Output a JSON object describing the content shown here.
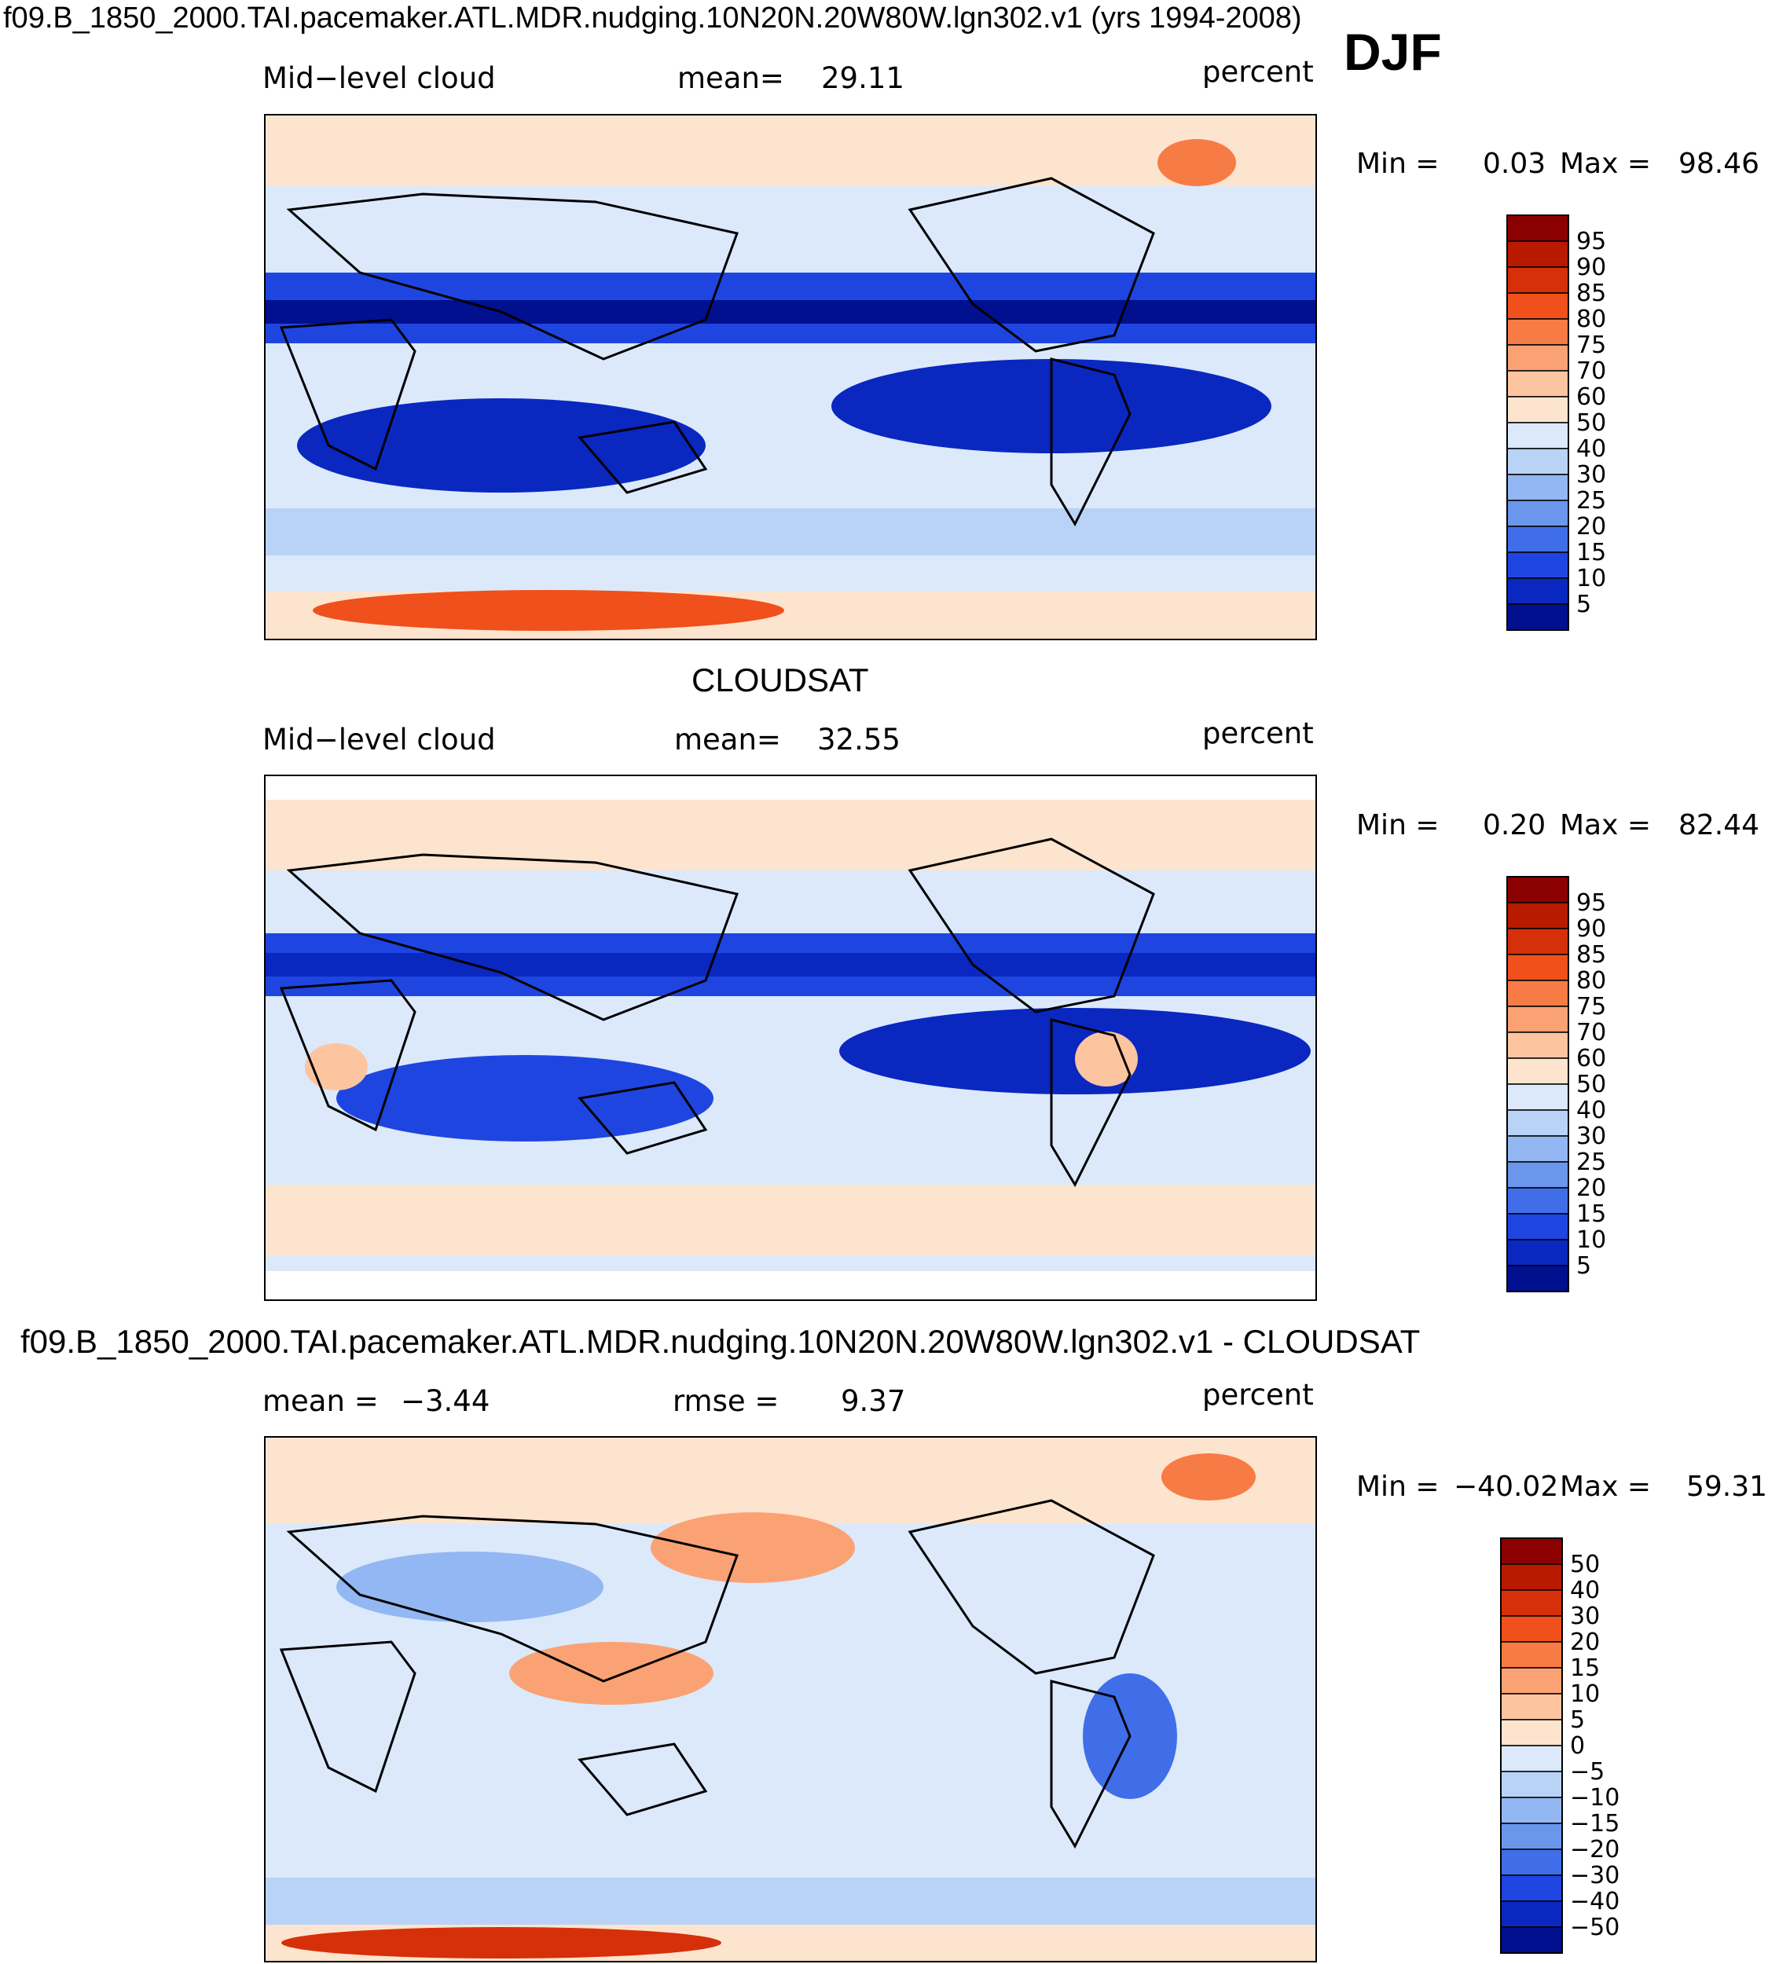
{
  "figure": {
    "header_title": "f09.B_1850_2000.TAI.pacemaker.ATL.MDR.nudging.10N20N.20W80W.lgn302.v1 (yrs 1994-2008)",
    "season": "DJF"
  },
  "chart_data": [
    {
      "type": "heatmap",
      "name": "model",
      "variable_label": "Mid−level cloud",
      "mean_label": "mean=",
      "mean_value": "29.11",
      "units": "percent",
      "min_label": "Min =",
      "min_value": "0.03",
      "max_label": "Max =",
      "max_value": "98.46",
      "colorbar": {
        "levels": [
          "95",
          "90",
          "85",
          "80",
          "75",
          "70",
          "60",
          "50",
          "40",
          "30",
          "25",
          "20",
          "15",
          "10",
          "5"
        ],
        "colors": [
          "#8b0000",
          "#b81a00",
          "#d6300a",
          "#f0501c",
          "#f77b45",
          "#fba274",
          "#fdc4a0",
          "#fde4cf",
          "#dbe9fb",
          "#b9d3f7",
          "#93b7f2",
          "#6a96ec",
          "#3f6ee8",
          "#1f45e0",
          "#0a27c0",
          "#00108e"
        ]
      }
    },
    {
      "type": "heatmap",
      "name": "observation",
      "dataset_title": "CLOUDSAT",
      "variable_label": "Mid−level cloud",
      "mean_label": "mean=",
      "mean_value": "32.55",
      "units": "percent",
      "min_label": "Min =",
      "min_value": "0.20",
      "max_label": "Max =",
      "max_value": "82.44",
      "colorbar": {
        "levels": [
          "95",
          "90",
          "85",
          "80",
          "75",
          "70",
          "60",
          "50",
          "40",
          "30",
          "25",
          "20",
          "15",
          "10",
          "5"
        ],
        "colors": [
          "#8b0000",
          "#b81a00",
          "#d6300a",
          "#f0501c",
          "#f77b45",
          "#fba274",
          "#fdc4a0",
          "#fde4cf",
          "#dbe9fb",
          "#b9d3f7",
          "#93b7f2",
          "#6a96ec",
          "#3f6ee8",
          "#1f45e0",
          "#0a27c0",
          "#00108e"
        ]
      }
    },
    {
      "type": "heatmap",
      "name": "difference",
      "dataset_title": "f09.B_1850_2000.TAI.pacemaker.ATL.MDR.nudging.10N20N.20W80W.lgn302.v1 - CLOUDSAT",
      "mean_label": "mean =",
      "mean_value": "−3.44",
      "rmse_label": "rmse =",
      "rmse_value": "9.37",
      "units": "percent",
      "min_label": "Min =",
      "min_value": "−40.02",
      "max_label": "Max =",
      "max_value": "59.31",
      "colorbar": {
        "levels": [
          "50",
          "40",
          "30",
          "20",
          "15",
          "10",
          "5",
          "0",
          "−5",
          "−10",
          "−15",
          "−20",
          "−30",
          "−40",
          "−50"
        ],
        "colors": [
          "#8b0000",
          "#b81a00",
          "#d6300a",
          "#f0501c",
          "#f77b45",
          "#fba274",
          "#fdc4a0",
          "#fde4cf",
          "#dbe9fb",
          "#b9d3f7",
          "#93b7f2",
          "#6a96ec",
          "#3f6ee8",
          "#1f45e0",
          "#0a27c0",
          "#00108e"
        ]
      }
    }
  ]
}
